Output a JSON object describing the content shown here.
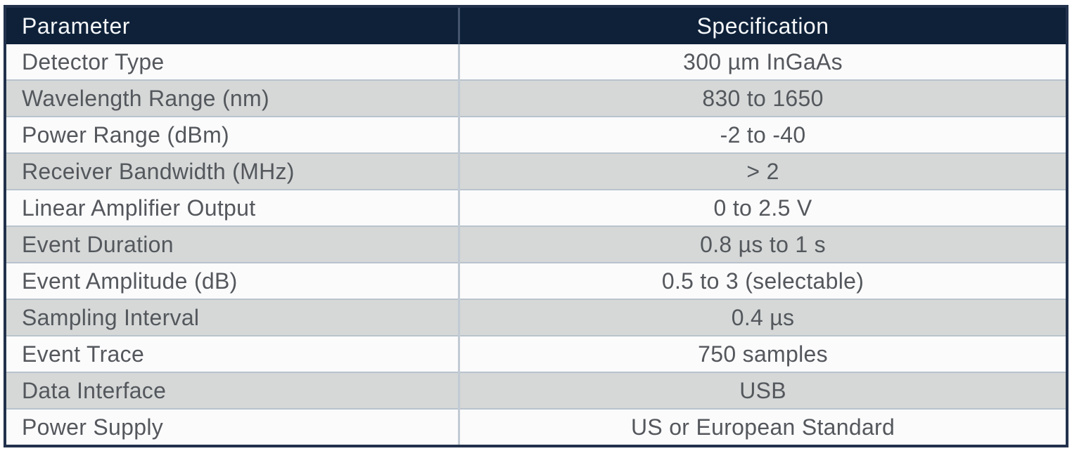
{
  "table": {
    "columns": [
      {
        "label": "Parameter"
      },
      {
        "label": "Specification"
      }
    ],
    "rows": [
      {
        "parameter": "Detector Type",
        "specification": "300 µm InGaAs"
      },
      {
        "parameter": "Wavelength Range (nm)",
        "specification": "830 to 1650"
      },
      {
        "parameter": "Power Range (dBm)",
        "specification": "-2 to -40"
      },
      {
        "parameter": "Receiver Bandwidth (MHz)",
        "specification": "> 2"
      },
      {
        "parameter": "Linear Amplifier Output",
        "specification": "0 to 2.5 V"
      },
      {
        "parameter": "Event Duration",
        "specification": "0.8 µs to 1 s"
      },
      {
        "parameter": "Event Amplitude (dB)",
        "specification": "0.5 to 3 (selectable)"
      },
      {
        "parameter": "Sampling Interval",
        "specification": "0.4 µs"
      },
      {
        "parameter": "Event Trace",
        "specification": "750 samples"
      },
      {
        "parameter": "Data Interface",
        "specification": "USB"
      },
      {
        "parameter": "Power Supply",
        "specification": "US or European Standard"
      }
    ],
    "colors": {
      "header_bg": "#0e2139",
      "header_text": "#f5f7f9",
      "outer_border": "#22324c",
      "row_bg": "#fbfbfc",
      "row_alt_bg": "#d5d8d7",
      "row_divider": "#b9c3cd",
      "column_divider": "#c2cbd3",
      "cell_text": "#54575c"
    }
  }
}
